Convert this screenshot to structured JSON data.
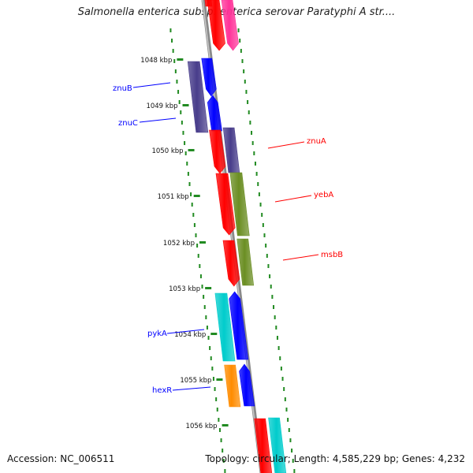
{
  "title": "Salmonella enterica subsp. enterica serovar Paratyphi A str....",
  "footer": {
    "accession": "Accession: NC_006511",
    "summary": "Topology: circular; Length: 4,585,229 bp; Genes: 4,232"
  },
  "ticks": [
    "1048 kbp",
    "1049 kbp",
    "1050 kbp",
    "1051 kbp",
    "1052 kbp",
    "1053 kbp",
    "1054 kbp",
    "1055 kbp",
    "1056 kbp"
  ],
  "genes": [
    {
      "label": "znuB",
      "side": "left",
      "color": "#0000ff"
    },
    {
      "label": "znuC",
      "side": "left",
      "color": "#0000ff"
    },
    {
      "label": "znuA",
      "side": "right",
      "color": "#ff0000"
    },
    {
      "label": "yebA",
      "side": "right",
      "color": "#ff0000"
    },
    {
      "label": "msbB",
      "side": "right",
      "color": "#ff0000"
    },
    {
      "label": "pykA",
      "side": "left",
      "color": "#0000ff"
    },
    {
      "label": "hexR",
      "side": "left",
      "color": "#0000ff"
    }
  ],
  "colors": {
    "backbone": "#8a8a8a",
    "dots": "#228b22",
    "red": "#ff0000",
    "navy": "#483d8b",
    "blue": "#0000ff",
    "olive": "#6b8e23",
    "cyan": "#00cccc",
    "orange": "#ff8c00",
    "pink": "#ff3399"
  }
}
